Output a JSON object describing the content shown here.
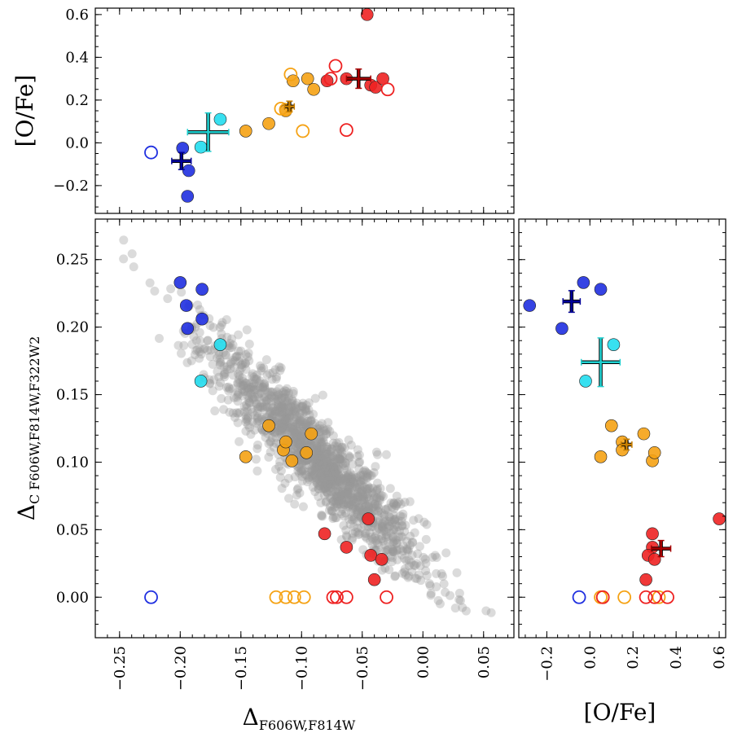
{
  "chart_data": [
    {
      "panel": "top",
      "type": "scatter",
      "xlabel": "",
      "ylabel": "[O/Fe]",
      "xlim": [
        -0.27,
        0.075
      ],
      "ylim": [
        -0.33,
        0.63
      ],
      "xticks": [],
      "yticks": [
        -0.2,
        0.0,
        0.2,
        0.4,
        0.6
      ],
      "ytick_labels": [
        "−0.2",
        "0.0",
        "0.2",
        "0.4",
        "0.6"
      ],
      "points": [
        {
          "x": -0.198,
          "y": -0.025,
          "color": "#1f2fe0",
          "filled": true
        },
        {
          "x": -0.193,
          "y": -0.13,
          "color": "#1f2fe0",
          "filled": true
        },
        {
          "x": -0.194,
          "y": -0.25,
          "color": "#1f2fe0",
          "filled": true
        },
        {
          "x": -0.224,
          "y": -0.045,
          "color": "#1f2fe0",
          "filled": false
        },
        {
          "x": -0.167,
          "y": 0.11,
          "color": "#22ddee",
          "filled": true
        },
        {
          "x": -0.183,
          "y": -0.02,
          "color": "#22ddee",
          "filled": true
        },
        {
          "x": -0.146,
          "y": 0.055,
          "color": "#f5a214",
          "filled": true
        },
        {
          "x": -0.127,
          "y": 0.09,
          "color": "#f5a214",
          "filled": true
        },
        {
          "x": -0.113,
          "y": 0.15,
          "color": "#f5a214",
          "filled": true
        },
        {
          "x": -0.107,
          "y": 0.29,
          "color": "#f5a214",
          "filled": true
        },
        {
          "x": -0.095,
          "y": 0.3,
          "color": "#f5a214",
          "filled": true
        },
        {
          "x": -0.09,
          "y": 0.25,
          "color": "#f5a214",
          "filled": true
        },
        {
          "x": -0.117,
          "y": 0.16,
          "color": "#f5a214",
          "filled": false
        },
        {
          "x": -0.109,
          "y": 0.32,
          "color": "#f5a214",
          "filled": false
        },
        {
          "x": -0.099,
          "y": 0.055,
          "color": "#f5a214",
          "filled": false
        },
        {
          "x": -0.113,
          "y": 0.155,
          "color": "#f5a214",
          "filled": false
        },
        {
          "x": -0.079,
          "y": 0.29,
          "color": "#ee2222",
          "filled": true
        },
        {
          "x": -0.063,
          "y": 0.3,
          "color": "#ee2222",
          "filled": true
        },
        {
          "x": -0.046,
          "y": 0.6,
          "color": "#ee2222",
          "filled": true
        },
        {
          "x": -0.043,
          "y": 0.27,
          "color": "#ee2222",
          "filled": true
        },
        {
          "x": -0.039,
          "y": 0.26,
          "color": "#ee2222",
          "filled": true
        },
        {
          "x": -0.033,
          "y": 0.3,
          "color": "#ee2222",
          "filled": true
        },
        {
          "x": -0.072,
          "y": 0.36,
          "color": "#ee2222",
          "filled": false
        },
        {
          "x": -0.076,
          "y": 0.3,
          "color": "#ee2222",
          "filled": false
        },
        {
          "x": -0.063,
          "y": 0.06,
          "color": "#ee2222",
          "filled": false
        },
        {
          "x": -0.029,
          "y": 0.25,
          "color": "#ee2222",
          "filled": false
        }
      ],
      "means": [
        {
          "x": -0.199,
          "y": -0.085,
          "xerr": 0.008,
          "yerr": 0.04,
          "color": "#000099"
        },
        {
          "x": -0.177,
          "y": 0.05,
          "xerr": 0.017,
          "yerr": 0.09,
          "color": "#1fd0d0"
        },
        {
          "x": -0.11,
          "y": 0.17,
          "xerr": 0.004,
          "yerr": 0.025,
          "color": "#c87f00"
        },
        {
          "x": -0.053,
          "y": 0.3,
          "xerr": 0.01,
          "yerr": 0.045,
          "color": "#aa0000"
        }
      ]
    },
    {
      "panel": "main",
      "type": "scatter",
      "xlabel": "Δ",
      "xlabel_sub": "F606W,F814W",
      "ylabel": "Δ",
      "ylabel_sub": "C F606W,F814W,F322W2",
      "xlim": [
        -0.27,
        0.075
      ],
      "ylim": [
        -0.03,
        0.28
      ],
      "xticks": [
        -0.25,
        -0.2,
        -0.15,
        -0.1,
        -0.05,
        0.0,
        0.05
      ],
      "xtick_labels": [
        "−0.25",
        "−0.20",
        "−0.15",
        "−0.10",
        "−0.05",
        "0.00",
        "0.05"
      ],
      "yticks": [
        0.0,
        0.05,
        0.1,
        0.15,
        0.2,
        0.25
      ],
      "ytick_labels": [
        "0.00",
        "0.05",
        "0.10",
        "0.15",
        "0.20",
        "0.25"
      ],
      "background": {
        "description_count": 1500,
        "color": "#999999",
        "relation": "y ≈ 0.024 − 0.90·x",
        "x_range": [
          -0.255,
          0.07
        ]
      },
      "points": [
        {
          "x": -0.2,
          "y": 0.233,
          "color": "#1f2fe0",
          "filled": true
        },
        {
          "x": -0.195,
          "y": 0.216,
          "color": "#1f2fe0",
          "filled": true
        },
        {
          "x": -0.194,
          "y": 0.199,
          "color": "#1f2fe0",
          "filled": true
        },
        {
          "x": -0.182,
          "y": 0.228,
          "color": "#1f2fe0",
          "filled": true
        },
        {
          "x": -0.182,
          "y": 0.206,
          "color": "#1f2fe0",
          "filled": true
        },
        {
          "x": -0.224,
          "y": 0.0,
          "color": "#1f2fe0",
          "filled": false
        },
        {
          "x": -0.167,
          "y": 0.187,
          "color": "#22ddee",
          "filled": true
        },
        {
          "x": -0.183,
          "y": 0.16,
          "color": "#22ddee",
          "filled": true
        },
        {
          "x": -0.146,
          "y": 0.104,
          "color": "#f5a214",
          "filled": true
        },
        {
          "x": -0.127,
          "y": 0.127,
          "color": "#f5a214",
          "filled": true
        },
        {
          "x": -0.115,
          "y": 0.109,
          "color": "#f5a214",
          "filled": true
        },
        {
          "x": -0.113,
          "y": 0.115,
          "color": "#f5a214",
          "filled": true
        },
        {
          "x": -0.108,
          "y": 0.101,
          "color": "#f5a214",
          "filled": true
        },
        {
          "x": -0.096,
          "y": 0.107,
          "color": "#f5a214",
          "filled": true
        },
        {
          "x": -0.092,
          "y": 0.121,
          "color": "#f5a214",
          "filled": true
        },
        {
          "x": -0.121,
          "y": 0.0,
          "color": "#f5a214",
          "filled": false
        },
        {
          "x": -0.113,
          "y": 0.0,
          "color": "#f5a214",
          "filled": false
        },
        {
          "x": -0.106,
          "y": 0.0,
          "color": "#f5a214",
          "filled": false
        },
        {
          "x": -0.098,
          "y": 0.0,
          "color": "#f5a214",
          "filled": false
        },
        {
          "x": -0.081,
          "y": 0.047,
          "color": "#ee2222",
          "filled": true
        },
        {
          "x": -0.063,
          "y": 0.037,
          "color": "#ee2222",
          "filled": true
        },
        {
          "x": -0.045,
          "y": 0.058,
          "color": "#ee2222",
          "filled": true
        },
        {
          "x": -0.043,
          "y": 0.031,
          "color": "#ee2222",
          "filled": true
        },
        {
          "x": -0.04,
          "y": 0.013,
          "color": "#ee2222",
          "filled": true
        },
        {
          "x": -0.034,
          "y": 0.028,
          "color": "#ee2222",
          "filled": true
        },
        {
          "x": -0.074,
          "y": 0.0,
          "color": "#ee2222",
          "filled": false
        },
        {
          "x": -0.071,
          "y": 0.0,
          "color": "#ee2222",
          "filled": false
        },
        {
          "x": -0.063,
          "y": 0.0,
          "color": "#ee2222",
          "filled": false
        },
        {
          "x": -0.03,
          "y": 0.0,
          "color": "#ee2222",
          "filled": false
        }
      ]
    },
    {
      "panel": "right",
      "type": "scatter",
      "xlabel": "[O/Fe]",
      "ylabel": "",
      "xlim": [
        -0.33,
        0.63
      ],
      "ylim": [
        -0.03,
        0.28
      ],
      "xticks": [
        -0.2,
        0.0,
        0.2,
        0.4,
        0.6
      ],
      "xtick_labels": [
        "−0.2",
        "0.0",
        "0.2",
        "0.4",
        "0.6"
      ],
      "yticks": [],
      "points": [
        {
          "x": -0.28,
          "y": 0.216,
          "color": "#1f2fe0",
          "filled": true
        },
        {
          "x": -0.13,
          "y": 0.199,
          "color": "#1f2fe0",
          "filled": true
        },
        {
          "x": -0.03,
          "y": 0.233,
          "color": "#1f2fe0",
          "filled": true
        },
        {
          "x": 0.05,
          "y": 0.228,
          "color": "#1f2fe0",
          "filled": true
        },
        {
          "x": -0.05,
          "y": 0.0,
          "color": "#1f2fe0",
          "filled": false
        },
        {
          "x": 0.11,
          "y": 0.187,
          "color": "#22ddee",
          "filled": true
        },
        {
          "x": -0.02,
          "y": 0.16,
          "color": "#22ddee",
          "filled": true
        },
        {
          "x": 0.1,
          "y": 0.127,
          "color": "#f5a214",
          "filled": true
        },
        {
          "x": 0.15,
          "y": 0.115,
          "color": "#f5a214",
          "filled": true
        },
        {
          "x": 0.15,
          "y": 0.109,
          "color": "#f5a214",
          "filled": true
        },
        {
          "x": 0.05,
          "y": 0.104,
          "color": "#f5a214",
          "filled": true
        },
        {
          "x": 0.29,
          "y": 0.101,
          "color": "#f5a214",
          "filled": true
        },
        {
          "x": 0.3,
          "y": 0.107,
          "color": "#f5a214",
          "filled": true
        },
        {
          "x": 0.25,
          "y": 0.121,
          "color": "#f5a214",
          "filled": true
        },
        {
          "x": 0.05,
          "y": 0.0,
          "color": "#f5a214",
          "filled": false
        },
        {
          "x": 0.16,
          "y": 0.0,
          "color": "#f5a214",
          "filled": false
        },
        {
          "x": 0.06,
          "y": 0.0,
          "color": "#f5a214",
          "filled": false
        },
        {
          "x": 0.32,
          "y": 0.0,
          "color": "#f5a214",
          "filled": false
        },
        {
          "x": 0.6,
          "y": 0.058,
          "color": "#ee2222",
          "filled": true
        },
        {
          "x": 0.29,
          "y": 0.047,
          "color": "#ee2222",
          "filled": true
        },
        {
          "x": 0.29,
          "y": 0.037,
          "color": "#ee2222",
          "filled": true
        },
        {
          "x": 0.27,
          "y": 0.031,
          "color": "#ee2222",
          "filled": true
        },
        {
          "x": 0.3,
          "y": 0.028,
          "color": "#ee2222",
          "filled": true
        },
        {
          "x": 0.26,
          "y": 0.013,
          "color": "#ee2222",
          "filled": true
        },
        {
          "x": 0.06,
          "y": 0.0,
          "color": "#ee2222",
          "filled": false
        },
        {
          "x": 0.26,
          "y": 0.0,
          "color": "#ee2222",
          "filled": false
        },
        {
          "x": 0.3,
          "y": 0.0,
          "color": "#ee2222",
          "filled": false
        },
        {
          "x": 0.36,
          "y": 0.0,
          "color": "#ee2222",
          "filled": false
        }
      ],
      "means": [
        {
          "x": -0.085,
          "y": 0.219,
          "xerr": 0.04,
          "yerr": 0.008,
          "color": "#000099"
        },
        {
          "x": 0.05,
          "y": 0.174,
          "xerr": 0.09,
          "yerr": 0.018,
          "color": "#1fd0d0"
        },
        {
          "x": 0.17,
          "y": 0.113,
          "xerr": 0.025,
          "yerr": 0.004,
          "color": "#c87f00"
        },
        {
          "x": 0.33,
          "y": 0.036,
          "xerr": 0.045,
          "yerr": 0.006,
          "color": "#aa0000"
        }
      ]
    }
  ]
}
